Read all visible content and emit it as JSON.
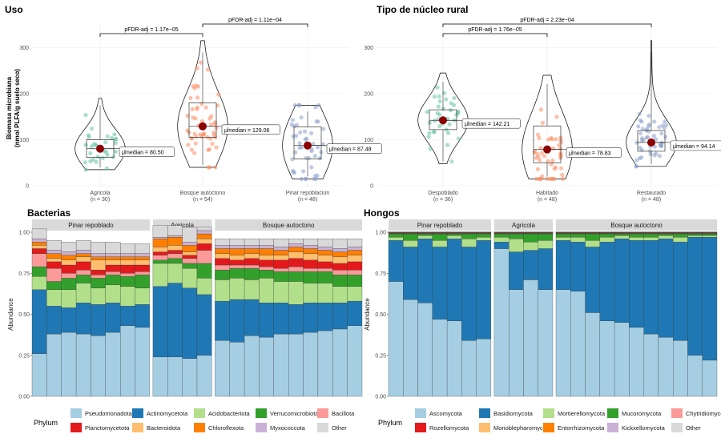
{
  "chart_data": [
    {
      "type": "violin",
      "title": "Uso",
      "ylabel": "Biomasa microbiana\n(nmol PLFA/g suelo seco)",
      "ylim": [
        0,
        320
      ],
      "yticks": [
        0,
        100,
        200,
        300
      ],
      "categories": [
        {
          "name": "Agricola",
          "n": "(n = 30)",
          "median": 80.5,
          "label": "μ̂median = 80.50",
          "q1": 62,
          "q3": 100,
          "min": 35,
          "max": 190,
          "color": "#66c2a5"
        },
        {
          "name": "Bosque autoctono",
          "n": "(n = 54)",
          "median": 129.06,
          "label": "μ̂median = 129.06",
          "q1": 105,
          "q3": 180,
          "min": 40,
          "max": 315,
          "color": "#fc8d62"
        },
        {
          "name": "Pinar repoblacion",
          "n": "(n = 48)",
          "median": 87.48,
          "label": "μ̂median = 87.48",
          "q1": 58,
          "q3": 128,
          "min": 15,
          "max": 175,
          "color": "#8da0cb"
        }
      ],
      "comparisons": [
        {
          "from": 0,
          "to": 1,
          "label": "pFDR-adj = 1.17e−05",
          "level": 1
        },
        {
          "from": 1,
          "to": 2,
          "label": "pFDR-adj = 1.11e−04",
          "level": 2
        }
      ]
    },
    {
      "type": "violin",
      "title": "Tipo de núcleo rural",
      "ylim": [
        0,
        320
      ],
      "yticks": [
        0,
        100,
        200,
        300
      ],
      "categories": [
        {
          "name": "Despoblado",
          "n": "(n = 36)",
          "median": 142.21,
          "label": "μ̂median = 142.21",
          "q1": 122,
          "q3": 165,
          "min": 48,
          "max": 245,
          "color": "#66c2a5"
        },
        {
          "name": "Habitado",
          "n": "(n = 48)",
          "median": 78.83,
          "label": "μ̂median = 78.83",
          "q1": 50,
          "q3": 130,
          "min": 15,
          "max": 240,
          "color": "#fc8d62"
        },
        {
          "name": "Restaurado",
          "n": "(n = 48)",
          "median": 94.14,
          "label": "μ̂median = 94.14",
          "q1": 75,
          "q3": 120,
          "min": 42,
          "max": 315,
          "color": "#8da0cb"
        }
      ],
      "comparisons": [
        {
          "from": 0,
          "to": 1,
          "label": "pFDR-adj = 1.76e−05",
          "level": 1
        },
        {
          "from": 0,
          "to": 2,
          "label": "pFDR-adj = 2.23e−04",
          "level": 2
        }
      ]
    },
    {
      "type": "stacked_bar",
      "title": "Bacterias",
      "ylabel": "Abundance",
      "yticks": [
        0.0,
        0.25,
        0.5,
        0.75,
        1.0
      ],
      "ytick_labels": [
        "0.00",
        "0.25",
        "0.50",
        "0.75",
        "1.00"
      ],
      "legend_title": "Phylum",
      "phyla": [
        {
          "name": "Pseudomonadota",
          "color": "#a6cee3"
        },
        {
          "name": "Actinomycetota",
          "color": "#1f78b4"
        },
        {
          "name": "Acidobacteriota",
          "color": "#b2df8a"
        },
        {
          "name": "Verrucomicrobiota",
          "color": "#33a02c"
        },
        {
          "name": "Bacillota",
          "color": "#fb9a99"
        },
        {
          "name": "Planctomycetota",
          "color": "#e31a1c"
        },
        {
          "name": "Bacteroidota",
          "color": "#fdbf6f"
        },
        {
          "name": "Chloroflexota",
          "color": "#ff7f00"
        },
        {
          "name": "Myxococcota",
          "color": "#cab2d6"
        },
        {
          "name": "Other",
          "color": "#d9d9d9"
        }
      ],
      "facets": [
        {
          "name": "Pinar repoblado",
          "samples": [
            [
              0.26,
              0.39,
              0.08,
              0.06,
              0.08,
              0.03,
              0.02,
              0.02,
              0.02,
              0.06
            ],
            [
              0.38,
              0.17,
              0.1,
              0.05,
              0.08,
              0.04,
              0.02,
              0.03,
              0.02,
              0.06
            ],
            [
              0.39,
              0.15,
              0.11,
              0.07,
              0.03,
              0.05,
              0.03,
              0.03,
              0.02,
              0.06
            ],
            [
              0.38,
              0.19,
              0.12,
              0.05,
              0.03,
              0.05,
              0.03,
              0.02,
              0.02,
              0.06
            ],
            [
              0.37,
              0.19,
              0.1,
              0.06,
              0.02,
              0.03,
              0.06,
              0.02,
              0.02,
              0.07
            ],
            [
              0.39,
              0.18,
              0.11,
              0.06,
              0.02,
              0.04,
              0.03,
              0.02,
              0.02,
              0.07
            ],
            [
              0.43,
              0.12,
              0.12,
              0.06,
              0.02,
              0.05,
              0.03,
              0.02,
              0.02,
              0.06
            ],
            [
              0.42,
              0.14,
              0.1,
              0.08,
              0.02,
              0.04,
              0.03,
              0.02,
              0.02,
              0.06
            ]
          ]
        },
        {
          "name": "Agricola",
          "samples": [
            [
              0.24,
              0.43,
              0.14,
              0.02,
              0.03,
              0.02,
              0.03,
              0.05,
              0.01,
              0.07
            ],
            [
              0.24,
              0.45,
              0.12,
              0.03,
              0.03,
              0.02,
              0.03,
              0.05,
              0.01,
              0.06
            ],
            [
              0.23,
              0.43,
              0.12,
              0.03,
              0.03,
              0.02,
              0.02,
              0.04,
              0.02,
              0.09
            ],
            [
              0.25,
              0.37,
              0.1,
              0.09,
              0.08,
              0.04,
              0.03,
              0.03,
              0.02,
              0.02
            ]
          ]
        },
        {
          "name": "Bosque autoctono",
          "samples": [
            [
              0.34,
              0.24,
              0.13,
              0.06,
              0.03,
              0.04,
              0.03,
              0.03,
              0.02,
              0.04
            ],
            [
              0.33,
              0.26,
              0.13,
              0.06,
              0.02,
              0.03,
              0.03,
              0.04,
              0.02,
              0.04
            ],
            [
              0.37,
              0.22,
              0.12,
              0.07,
              0.02,
              0.04,
              0.03,
              0.03,
              0.02,
              0.04
            ],
            [
              0.36,
              0.21,
              0.15,
              0.05,
              0.02,
              0.04,
              0.03,
              0.04,
              0.02,
              0.04
            ],
            [
              0.38,
              0.19,
              0.13,
              0.06,
              0.02,
              0.05,
              0.03,
              0.03,
              0.02,
              0.05
            ],
            [
              0.38,
              0.18,
              0.14,
              0.06,
              0.03,
              0.05,
              0.04,
              0.03,
              0.02,
              0.03
            ],
            [
              0.39,
              0.18,
              0.12,
              0.07,
              0.02,
              0.05,
              0.04,
              0.03,
              0.02,
              0.04
            ],
            [
              0.4,
              0.17,
              0.12,
              0.07,
              0.02,
              0.04,
              0.04,
              0.03,
              0.02,
              0.05
            ],
            [
              0.41,
              0.16,
              0.1,
              0.07,
              0.03,
              0.04,
              0.04,
              0.03,
              0.02,
              0.06
            ],
            [
              0.43,
              0.15,
              0.09,
              0.07,
              0.03,
              0.05,
              0.04,
              0.03,
              0.02,
              0.05
            ]
          ]
        }
      ]
    },
    {
      "type": "stacked_bar",
      "title": "Hongos",
      "ylabel": "Abundance",
      "yticks": [
        0.0,
        0.25,
        0.5,
        0.75,
        1.0
      ],
      "ytick_labels": [
        "0.00",
        "0.25",
        "0.50",
        "0.75",
        "1.00"
      ],
      "legend_title": "Phylum",
      "phyla": [
        {
          "name": "Ascomycota",
          "color": "#a6cee3"
        },
        {
          "name": "Basidiomycota",
          "color": "#1f78b4"
        },
        {
          "name": "Mortierellomycota",
          "color": "#b2df8a"
        },
        {
          "name": "Mucoromycota",
          "color": "#33a02c"
        },
        {
          "name": "Chytridiomycota",
          "color": "#fb9a99"
        },
        {
          "name": "Rozellomycota",
          "color": "#e31a1c"
        },
        {
          "name": "Monoblepharomycota",
          "color": "#fdbf6f"
        },
        {
          "name": "Entorrhizomycota",
          "color": "#ff7f00"
        },
        {
          "name": "Kickxellomycota",
          "color": "#cab2d6"
        },
        {
          "name": "Other",
          "color": "#d9d9d9"
        }
      ],
      "facets": [
        {
          "name": "Pinar repoblado",
          "samples": [
            [
              0.7,
              0.25,
              0.02,
              0.02,
              0.002,
              0.002,
              0.002,
              0.002,
              0.002,
              0.002
            ],
            [
              0.59,
              0.32,
              0.04,
              0.04,
              0.002,
              0.002,
              0.002,
              0.002,
              0.002,
              0.002
            ],
            [
              0.57,
              0.39,
              0.02,
              0.01,
              0.002,
              0.002,
              0.002,
              0.002,
              0.002,
              0.002
            ],
            [
              0.47,
              0.44,
              0.04,
              0.04,
              0.002,
              0.002,
              0.002,
              0.002,
              0.002,
              0.002
            ],
            [
              0.46,
              0.5,
              0.02,
              0.01,
              0.002,
              0.002,
              0.002,
              0.002,
              0.002,
              0.002
            ],
            [
              0.34,
              0.57,
              0.05,
              0.03,
              0.002,
              0.002,
              0.002,
              0.002,
              0.002,
              0.002
            ],
            [
              0.35,
              0.6,
              0.02,
              0.02,
              0.002,
              0.002,
              0.002,
              0.002,
              0.002,
              0.002
            ]
          ]
        },
        {
          "name": "Agricola",
          "samples": [
            [
              0.9,
              0.04,
              0.03,
              0.02,
              0.002,
              0.002,
              0.002,
              0.002,
              0.002,
              0.002
            ],
            [
              0.65,
              0.23,
              0.08,
              0.03,
              0.002,
              0.002,
              0.002,
              0.002,
              0.002,
              0.002
            ],
            [
              0.71,
              0.18,
              0.05,
              0.05,
              0.002,
              0.002,
              0.002,
              0.002,
              0.002,
              0.002
            ],
            [
              0.65,
              0.25,
              0.05,
              0.04,
              0.002,
              0.002,
              0.002,
              0.002,
              0.002,
              0.002
            ]
          ]
        },
        {
          "name": "Bosque autoctono",
          "samples": [
            [
              0.65,
              0.3,
              0.02,
              0.02,
              0.002,
              0.002,
              0.002,
              0.002,
              0.002,
              0.002
            ],
            [
              0.64,
              0.3,
              0.03,
              0.02,
              0.002,
              0.002,
              0.002,
              0.002,
              0.002,
              0.002
            ],
            [
              0.51,
              0.4,
              0.04,
              0.04,
              0.002,
              0.002,
              0.002,
              0.002,
              0.002,
              0.002
            ],
            [
              0.46,
              0.48,
              0.03,
              0.02,
              0.002,
              0.002,
              0.002,
              0.002,
              0.002,
              0.002
            ],
            [
              0.45,
              0.51,
              0.02,
              0.01,
              0.002,
              0.002,
              0.002,
              0.002,
              0.002,
              0.002
            ],
            [
              0.42,
              0.53,
              0.02,
              0.02,
              0.002,
              0.002,
              0.002,
              0.002,
              0.002,
              0.002
            ],
            [
              0.38,
              0.57,
              0.02,
              0.02,
              0.002,
              0.002,
              0.002,
              0.002,
              0.002,
              0.002
            ],
            [
              0.36,
              0.6,
              0.02,
              0.01,
              0.002,
              0.002,
              0.002,
              0.002,
              0.002,
              0.002
            ],
            [
              0.34,
              0.6,
              0.03,
              0.02,
              0.002,
              0.002,
              0.002,
              0.002,
              0.002,
              0.002
            ],
            [
              0.25,
              0.72,
              0.01,
              0.01,
              0.002,
              0.002,
              0.002,
              0.002,
              0.002,
              0.002
            ],
            [
              0.22,
              0.75,
              0.01,
              0.01,
              0.002,
              0.002,
              0.002,
              0.002,
              0.002,
              0.002
            ]
          ]
        }
      ]
    }
  ]
}
